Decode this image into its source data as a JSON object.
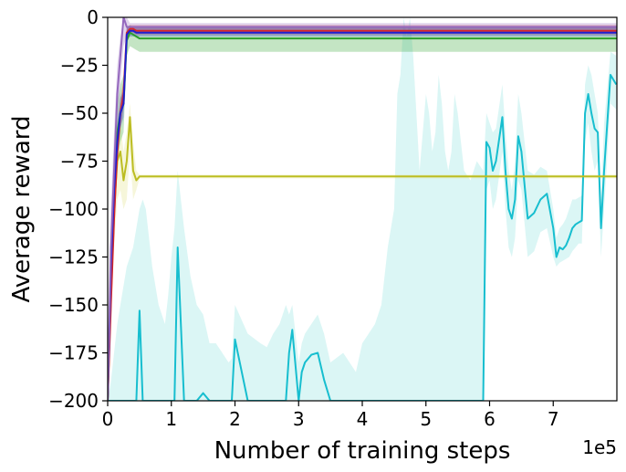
{
  "chart_data": {
    "type": "line",
    "title": "",
    "xlabel": "Number of training steps",
    "ylabel": "Average reward",
    "x_offset_label": "1e5",
    "xlim": [
      0,
      8
    ],
    "ylim": [
      -200,
      0
    ],
    "x_ticks": [
      0,
      1,
      2,
      3,
      4,
      5,
      6,
      7
    ],
    "x_tick_labels": [
      "0",
      "1",
      "2",
      "3",
      "4",
      "5",
      "6",
      "7"
    ],
    "y_ticks": [
      0,
      -25,
      -50,
      -75,
      -100,
      -125,
      -150,
      -175,
      -200
    ],
    "y_tick_labels": [
      "0",
      "−25",
      "−50",
      "−75",
      "−100",
      "−125",
      "−150",
      "−175",
      "−200"
    ],
    "grid": false,
    "legend": "none",
    "series": [
      {
        "color": "#17becf",
        "band_color": "#7fdfdc",
        "x": [
          0,
          0.05,
          0.1,
          0.15,
          0.2,
          0.25,
          0.3,
          0.35,
          0.4,
          0.45,
          0.5,
          0.55,
          0.6,
          0.7,
          0.8,
          0.9,
          0.95,
          1.0,
          1.05,
          1.1,
          1.2,
          1.3,
          1.4,
          1.5,
          1.6,
          1.7,
          1.9,
          1.95,
          2.0,
          2.2,
          2.4,
          2.5,
          2.6,
          2.7,
          2.8,
          2.85,
          2.9,
          3.0,
          3.05,
          3.1,
          3.2,
          3.3,
          3.4,
          3.5,
          3.7,
          3.9,
          4.0,
          4.2,
          4.3,
          4.4,
          4.5,
          4.55,
          4.6,
          4.65,
          4.7,
          4.75,
          4.8,
          4.9,
          4.95,
          5.0,
          5.05,
          5.1,
          5.15,
          5.2,
          5.25,
          5.3,
          5.35,
          5.4,
          5.45,
          5.5,
          5.6,
          5.7,
          5.8,
          5.9,
          5.95,
          6.0,
          6.05,
          6.1,
          6.2,
          6.25,
          6.3,
          6.35,
          6.4,
          6.45,
          6.5,
          6.6,
          6.7,
          6.8,
          6.9,
          7.0,
          7.05,
          7.1,
          7.15,
          7.2,
          7.25,
          7.3,
          7.35,
          7.4,
          7.45,
          7.5,
          7.55,
          7.6,
          7.65,
          7.7,
          7.75,
          7.8,
          7.9,
          7.99
        ],
        "y": [
          -200,
          -200,
          -200,
          -200,
          -200,
          -200,
          -200,
          -200,
          -200,
          -200,
          -153,
          -200,
          -200,
          -200,
          -200,
          -200,
          -200,
          -200,
          -200,
          -120,
          -200,
          -200,
          -200,
          -196,
          -200,
          -200,
          -200,
          -200,
          -168,
          -200,
          -200,
          -200,
          -200,
          -200,
          -200,
          -175,
          -163,
          -200,
          -185,
          -180,
          -176,
          -175,
          -189,
          -200,
          -200,
          -200,
          -200,
          -200,
          -200,
          -200,
          -200,
          -200,
          -200,
          -200,
          -200,
          -200,
          -200,
          -200,
          -200,
          -200,
          -200,
          -200,
          -200,
          -200,
          -200,
          -200,
          -200,
          -200,
          -200,
          -200,
          -200,
          -200,
          -200,
          -200,
          -65,
          -68,
          -80,
          -75,
          -52,
          -80,
          -100,
          -105,
          -95,
          -62,
          -70,
          -105,
          -102,
          -95,
          -92,
          -110,
          -125,
          -120,
          -121,
          -119,
          -115,
          -110,
          -108,
          -107,
          -106,
          -50,
          -40,
          -50,
          -58,
          -60,
          -110,
          -80,
          -30,
          -35
        ],
        "upper": [
          -200,
          -190,
          -175,
          -160,
          -150,
          -140,
          -130,
          -125,
          -120,
          -110,
          -100,
          -95,
          -100,
          -130,
          -150,
          -160,
          -145,
          -125,
          -110,
          -80,
          -110,
          -135,
          -150,
          -155,
          -170,
          -170,
          -180,
          -178,
          -150,
          -165,
          -170,
          -172,
          -165,
          -160,
          -150,
          -155,
          -150,
          -180,
          -170,
          -165,
          -160,
          -155,
          -165,
          -180,
          -175,
          -185,
          -170,
          -160,
          -150,
          -120,
          -100,
          -40,
          -30,
          0,
          -10,
          0,
          -20,
          -80,
          -60,
          -40,
          -50,
          -70,
          -60,
          -30,
          -45,
          -70,
          -80,
          -70,
          -40,
          -50,
          -80,
          -85,
          -75,
          -80,
          -50,
          -55,
          -60,
          -58,
          -35,
          -60,
          -80,
          -90,
          -75,
          -40,
          -50,
          -80,
          -82,
          -78,
          -80,
          -100,
          -115,
          -110,
          -108,
          -105,
          -100,
          -95,
          -95,
          -94,
          -93,
          -35,
          -25,
          -30,
          -40,
          -50,
          -95,
          -55,
          -18,
          -20
        ],
        "lower": [
          -200,
          -200,
          -200,
          -200,
          -200,
          -200,
          -200,
          -200,
          -200,
          -200,
          -200,
          -200,
          -200,
          -200,
          -200,
          -200,
          -200,
          -200,
          -200,
          -200,
          -200,
          -200,
          -200,
          -200,
          -200,
          -200,
          -200,
          -200,
          -200,
          -200,
          -200,
          -200,
          -200,
          -200,
          -200,
          -200,
          -200,
          -200,
          -200,
          -200,
          -200,
          -200,
          -200,
          -200,
          -200,
          -200,
          -200,
          -200,
          -200,
          -200,
          -200,
          -200,
          -200,
          -200,
          -200,
          -200,
          -200,
          -200,
          -200,
          -200,
          -200,
          -200,
          -200,
          -200,
          -200,
          -200,
          -200,
          -200,
          -200,
          -200,
          -200,
          -200,
          -200,
          -200,
          -90,
          -85,
          -100,
          -95,
          -70,
          -100,
          -120,
          -125,
          -115,
          -85,
          -90,
          -125,
          -122,
          -112,
          -110,
          -125,
          -130,
          -128,
          -127,
          -126,
          -125,
          -122,
          -120,
          -118,
          -118,
          -65,
          -55,
          -70,
          -80,
          -75,
          -125,
          -100,
          -45,
          -48
        ]
      },
      {
        "color": "#bcbd22",
        "band_color": "#e0e07a",
        "x": [
          0,
          0.05,
          0.1,
          0.15,
          0.2,
          0.25,
          0.3,
          0.35,
          0.4,
          0.45,
          0.5,
          1.0,
          2.0,
          3.0,
          4.0,
          5.0,
          6.0,
          7.0,
          8.0
        ],
        "y": [
          -200,
          -140,
          -100,
          -75,
          -70,
          -85,
          -75,
          -52,
          -80,
          -85,
          -83,
          -83,
          -83,
          -83,
          -83,
          -83,
          -83,
          -83,
          -83
        ],
        "upper": [
          -200,
          -120,
          -80,
          -60,
          -55,
          -70,
          -60,
          -45,
          -65,
          -80,
          -82,
          -82,
          -82,
          -82,
          -82,
          -82,
          -82,
          -82,
          -82
        ],
        "lower": [
          -200,
          -160,
          -120,
          -95,
          -90,
          -100,
          -95,
          -70,
          -95,
          -90,
          -84,
          -84,
          -84,
          -84,
          -84,
          -84,
          -84,
          -84,
          -84
        ]
      },
      {
        "color": "#2ca02c",
        "band_color": "#2ca02c",
        "x": [
          0,
          0.05,
          0.1,
          0.15,
          0.2,
          0.25,
          0.3,
          0.35,
          0.4,
          0.45,
          0.5,
          1.0,
          2.0,
          3.0,
          4.0,
          5.0,
          6.0,
          7.0,
          8.0
        ],
        "y": [
          -200,
          -140,
          -90,
          -60,
          -50,
          -45,
          -12,
          -8,
          -9,
          -10,
          -11,
          -11,
          -11,
          -11,
          -11,
          -11,
          -11,
          -11,
          -11
        ],
        "upper": [
          -200,
          -120,
          -75,
          -45,
          -35,
          -30,
          -5,
          -4,
          -5,
          -5,
          -5,
          -5,
          -5,
          -5,
          -5,
          -5,
          -5,
          -5,
          -5
        ],
        "lower": [
          -200,
          -160,
          -105,
          -75,
          -65,
          -60,
          -20,
          -15,
          -16,
          -17,
          -18,
          -18,
          -18,
          -18,
          -18,
          -18,
          -18,
          -18,
          -18
        ]
      },
      {
        "color": "#d62728",
        "band_color": "#d62728",
        "x": [
          0,
          0.05,
          0.1,
          0.15,
          0.2,
          0.25,
          0.3,
          0.35,
          0.4,
          0.45,
          0.5,
          1.0,
          2.0,
          3.0,
          4.0,
          5.0,
          6.0,
          7.0,
          8.0
        ],
        "y": [
          -200,
          -150,
          -105,
          -70,
          -50,
          -40,
          -8,
          -6,
          -6,
          -7,
          -7,
          -7,
          -7,
          -7,
          -7,
          -7,
          -7,
          -7,
          -7
        ],
        "upper": [
          -200,
          -140,
          -95,
          -60,
          -42,
          -33,
          -5,
          -4,
          -4,
          -4,
          -4,
          -4,
          -4,
          -4,
          -4,
          -4,
          -4,
          -4,
          -4
        ],
        "lower": [
          -200,
          -160,
          -115,
          -80,
          -58,
          -47,
          -11,
          -8,
          -8,
          -9,
          -9,
          -9,
          -9,
          -9,
          -9,
          -9,
          -9,
          -9,
          -9
        ]
      },
      {
        "color": "#1f1fd0",
        "band_color": "#1f1fd0",
        "x": [
          0,
          0.05,
          0.1,
          0.15,
          0.2,
          0.25,
          0.3,
          0.35,
          0.4,
          0.45,
          0.5,
          1.0,
          2.0,
          3.0,
          4.0,
          5.0,
          6.0,
          7.0,
          8.0
        ],
        "y": [
          -200,
          -130,
          -90,
          -65,
          -50,
          -45,
          -9,
          -7,
          -7,
          -8,
          -8,
          -8,
          -8,
          -8,
          -8,
          -8,
          -8,
          -8,
          -8
        ],
        "upper": [
          -200,
          -120,
          -80,
          -55,
          -42,
          -38,
          -5,
          -5,
          -5,
          -5,
          -5,
          -5,
          -5,
          -5,
          -5,
          -5,
          -5,
          -5,
          -5
        ],
        "lower": [
          -200,
          -140,
          -100,
          -75,
          -58,
          -52,
          -12,
          -10,
          -10,
          -10,
          -10,
          -10,
          -10,
          -10,
          -10,
          -10,
          -10,
          -10,
          -10
        ]
      },
      {
        "color": "#9467bd",
        "band_color": "#9467bd",
        "x": [
          0,
          0.05,
          0.1,
          0.15,
          0.2,
          0.25,
          0.3,
          0.35,
          0.4,
          0.45,
          0.5,
          1.0,
          2.0,
          3.0,
          4.0,
          5.0,
          6.0,
          7.0,
          8.0
        ],
        "y": [
          -200,
          -120,
          -80,
          -40,
          -20,
          0,
          -5,
          -5,
          -5,
          -5,
          -5,
          -5,
          -5,
          -5,
          -5,
          -5,
          -5,
          -5,
          -5
        ],
        "upper": [
          -200,
          -100,
          -60,
          -25,
          -10,
          0,
          0,
          -3,
          -3,
          -3,
          -3,
          -3,
          -3,
          -3,
          -3,
          -3,
          -3,
          -3,
          -3
        ],
        "lower": [
          -200,
          -140,
          -100,
          -60,
          -35,
          -15,
          -10,
          -8,
          -8,
          -8,
          -8,
          -8,
          -8,
          -8,
          -8,
          -8,
          -8,
          -8,
          -8
        ]
      }
    ]
  }
}
